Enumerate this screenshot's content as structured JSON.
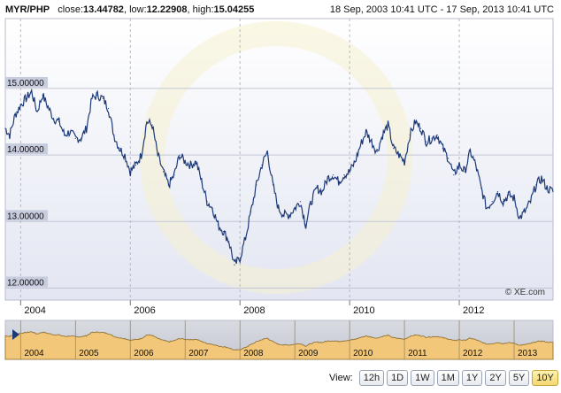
{
  "header": {
    "pair": "MYR/PHP",
    "close_label": "close:",
    "close_value": "13.44782",
    "low_label": "low:",
    "low_value": "12.22908",
    "high_label": "high:",
    "high_value": "15.04255",
    "date_range": "18 Sep, 2003 10:41 UTC - 17 Sep, 2013 10:41 UTC"
  },
  "watermark": "© XE.com",
  "view": {
    "label": "View:",
    "buttons": [
      "12h",
      "1D",
      "1W",
      "1M",
      "1Y",
      "2Y",
      "5Y",
      "10Y"
    ],
    "active": "10Y"
  },
  "colors": {
    "line": "#1d3a78",
    "navigator_fill": "#f2c77a",
    "active_button": "#f4d772"
  },
  "chart_data": {
    "type": "line",
    "x_unit": "year",
    "xlim": [
      2003.72,
      2013.71
    ],
    "ylim": [
      11.82,
      16.05
    ],
    "y_ticks": [
      15.0,
      14.0,
      13.0,
      12.0
    ],
    "y_tick_labels": [
      "15.00000",
      "14.00000",
      "13.00000",
      "12.00000"
    ],
    "x_ticks": [
      2004,
      2006,
      2008,
      2010,
      2012
    ],
    "x_tick_labels": [
      "2004",
      "2006",
      "2008",
      "2010",
      "2012"
    ],
    "grid": true,
    "series": [
      {
        "x": [
          2003.72,
          2003.8,
          2003.9,
          2004.0,
          2004.1,
          2004.2,
          2004.3,
          2004.4,
          2004.5,
          2004.6,
          2004.7,
          2004.8,
          2004.9,
          2005.0,
          2005.1,
          2005.2,
          2005.3,
          2005.4,
          2005.5,
          2005.6,
          2005.7,
          2005.8,
          2005.9,
          2006.0,
          2006.1,
          2006.2,
          2006.3,
          2006.4,
          2006.5,
          2006.6,
          2006.7,
          2006.8,
          2006.9,
          2007.0,
          2007.1,
          2007.2,
          2007.3,
          2007.4,
          2007.5,
          2007.6,
          2007.7,
          2007.8,
          2007.9,
          2008.0,
          2008.1,
          2008.2,
          2008.3,
          2008.4,
          2008.5,
          2008.6,
          2008.7,
          2008.8,
          2008.9,
          2009.0,
          2009.1,
          2009.2,
          2009.3,
          2009.4,
          2009.5,
          2009.6,
          2009.7,
          2009.8,
          2009.9,
          2010.0,
          2010.1,
          2010.2,
          2010.3,
          2010.4,
          2010.5,
          2010.6,
          2010.7,
          2010.8,
          2010.9,
          2011.0,
          2011.1,
          2011.2,
          2011.3,
          2011.4,
          2011.5,
          2011.6,
          2011.7,
          2011.8,
          2011.9,
          2012.0,
          2012.1,
          2012.2,
          2012.3,
          2012.4,
          2012.5,
          2012.6,
          2012.7,
          2012.8,
          2012.9,
          2013.0,
          2013.1,
          2013.2,
          2013.3,
          2013.4,
          2013.5,
          2013.6,
          2013.71
        ],
        "values": [
          14.4,
          14.3,
          14.6,
          14.75,
          14.85,
          14.95,
          14.65,
          14.9,
          14.72,
          14.55,
          14.5,
          14.3,
          14.35,
          14.25,
          14.25,
          14.4,
          14.85,
          14.9,
          14.85,
          14.7,
          14.3,
          14.1,
          14.0,
          13.75,
          13.85,
          14.0,
          14.5,
          14.45,
          14.0,
          13.75,
          13.55,
          13.7,
          14.0,
          13.9,
          13.85,
          13.9,
          13.6,
          13.3,
          13.2,
          12.95,
          12.85,
          12.7,
          12.35,
          12.45,
          12.75,
          13.15,
          13.55,
          13.85,
          14.05,
          13.55,
          13.2,
          13.1,
          13.1,
          13.2,
          13.3,
          12.95,
          13.3,
          13.5,
          13.45,
          13.65,
          13.7,
          13.6,
          13.7,
          13.75,
          13.9,
          14.15,
          14.35,
          14.2,
          14.05,
          14.3,
          14.45,
          14.1,
          14.0,
          13.9,
          14.3,
          14.5,
          14.4,
          14.2,
          14.25,
          14.3,
          14.1,
          13.95,
          13.7,
          13.85,
          13.75,
          14.05,
          13.85,
          13.5,
          13.2,
          13.3,
          13.45,
          13.3,
          13.4,
          13.35,
          13.05,
          13.15,
          13.3,
          13.55,
          13.65,
          13.5,
          13.45
        ]
      }
    ]
  },
  "navigator": {
    "year_labels": [
      "2004",
      "2005",
      "2006",
      "2007",
      "2008",
      "2009",
      "2010",
      "2011",
      "2012",
      "2013"
    ]
  }
}
